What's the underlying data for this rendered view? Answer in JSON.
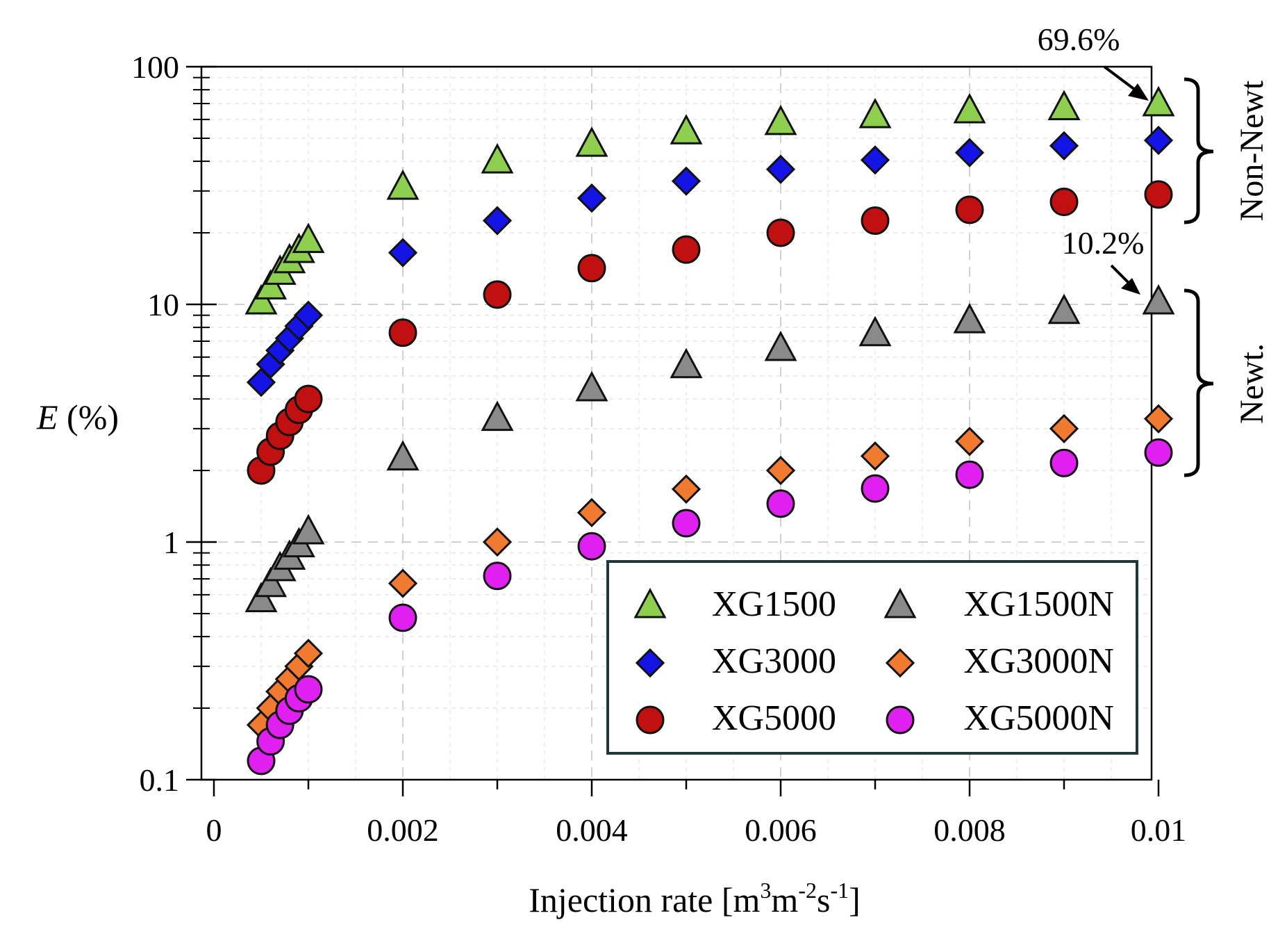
{
  "chart_data": {
    "type": "scatter",
    "title": "",
    "xlabel": {
      "main": "Injection rate [m",
      "sup1": "3",
      "mid": "m",
      "sup2": "-2",
      "mid2": "s",
      "sup3": "-1",
      "end": "]"
    },
    "ylabel": {
      "var": "E",
      "unit": " (%)"
    },
    "xlim": [
      0,
      0.01
    ],
    "ylim": [
      0.1,
      100
    ],
    "yscale": "log",
    "grid": true,
    "x_ticks": [
      {
        "value": 0,
        "label": "0"
      },
      {
        "value": 0.002,
        "label": "0.002"
      },
      {
        "value": 0.004,
        "label": "0.004"
      },
      {
        "value": 0.006,
        "label": "0.006"
      },
      {
        "value": 0.008,
        "label": "0.008"
      },
      {
        "value": 0.01,
        "label": "0.01"
      }
    ],
    "y_ticks": [
      {
        "value": 0.1,
        "label": "0.1"
      },
      {
        "value": 1,
        "label": "1"
      },
      {
        "value": 10,
        "label": "10"
      },
      {
        "value": 100,
        "label": "100"
      }
    ],
    "legend_position": "bottom-right",
    "series": [
      {
        "name": "XG1500",
        "marker": "triangle",
        "color": "#8fcf50",
        "x": [
          0.0005,
          0.0006,
          0.0007,
          0.0008,
          0.0009,
          0.001,
          0.002,
          0.003,
          0.004,
          0.005,
          0.006,
          0.007,
          0.008,
          0.009,
          0.01
        ],
        "y": [
          10.2,
          11.8,
          13.6,
          15.2,
          16.8,
          18.5,
          31,
          40,
          47,
          53,
          58,
          62,
          65,
          67,
          69.6
        ]
      },
      {
        "name": "XG3000",
        "marker": "diamond",
        "color": "#1414e6",
        "x": [
          0.0005,
          0.0006,
          0.0007,
          0.0008,
          0.0009,
          0.001,
          0.002,
          0.003,
          0.004,
          0.005,
          0.006,
          0.007,
          0.008,
          0.009,
          0.01
        ],
        "y": [
          4.7,
          5.6,
          6.4,
          7.2,
          8.1,
          9.0,
          16.5,
          22.5,
          28,
          33,
          37,
          40.5,
          43.5,
          46.5,
          49
        ]
      },
      {
        "name": "XG5000",
        "marker": "circle",
        "color": "#c01010",
        "x": [
          0.0005,
          0.0006,
          0.0007,
          0.0008,
          0.0009,
          0.001,
          0.002,
          0.003,
          0.004,
          0.005,
          0.006,
          0.007,
          0.008,
          0.009,
          0.01
        ],
        "y": [
          2.0,
          2.4,
          2.8,
          3.2,
          3.6,
          4.0,
          7.6,
          11,
          14.2,
          17,
          20,
          22.5,
          25,
          27,
          29
        ]
      },
      {
        "name": "XG1500N",
        "marker": "triangle",
        "color": "#8a8a8a",
        "x": [
          0.0005,
          0.0006,
          0.0007,
          0.0008,
          0.0009,
          0.001,
          0.002,
          0.003,
          0.004,
          0.005,
          0.006,
          0.007,
          0.008,
          0.009,
          0.01
        ],
        "y": [
          0.57,
          0.66,
          0.77,
          0.86,
          0.97,
          1.1,
          2.25,
          3.3,
          4.4,
          5.5,
          6.5,
          7.5,
          8.5,
          9.3,
          10.2
        ]
      },
      {
        "name": "XG3000N",
        "marker": "diamond",
        "color": "#f07a30",
        "x": [
          0.0005,
          0.0006,
          0.0007,
          0.0008,
          0.0009,
          0.001,
          0.002,
          0.003,
          0.004,
          0.005,
          0.006,
          0.007,
          0.008,
          0.009,
          0.01
        ],
        "y": [
          0.17,
          0.2,
          0.235,
          0.265,
          0.3,
          0.34,
          0.67,
          1.0,
          1.33,
          1.67,
          2.0,
          2.3,
          2.65,
          3.0,
          3.3
        ]
      },
      {
        "name": "XG5000N",
        "marker": "circle",
        "color": "#e020f0",
        "x": [
          0.0005,
          0.0006,
          0.0007,
          0.0008,
          0.0009,
          0.001,
          0.002,
          0.003,
          0.004,
          0.005,
          0.006,
          0.007,
          0.008,
          0.009,
          0.01
        ],
        "y": [
          0.12,
          0.145,
          0.17,
          0.195,
          0.22,
          0.24,
          0.48,
          0.72,
          0.96,
          1.2,
          1.45,
          1.68,
          1.92,
          2.15,
          2.38
        ]
      }
    ],
    "annotations": [
      {
        "text": "69.6%",
        "target_x": 0.01,
        "target_y": 69.6
      },
      {
        "text": "10.2%",
        "target_x": 0.01,
        "target_y": 10.2
      }
    ],
    "groups": [
      {
        "label": "Non-Newt",
        "y_range": [
          22,
          94
        ]
      },
      {
        "label": "Newt.",
        "y_range": [
          1.9,
          10.9
        ]
      }
    ]
  }
}
